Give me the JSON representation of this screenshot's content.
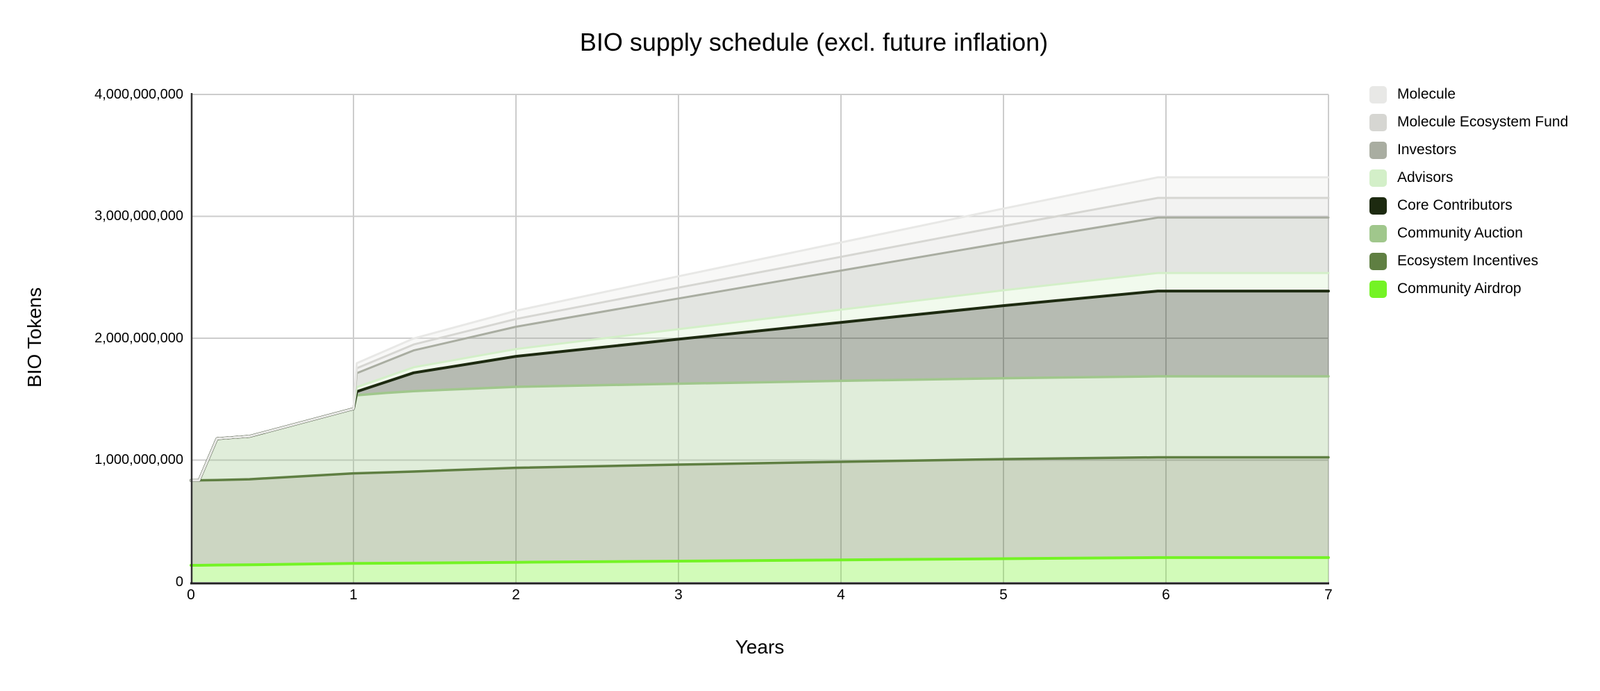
{
  "title": "BIO supply schedule (excl. future inflation)",
  "axes": {
    "x": {
      "title": "Years",
      "ticks": [
        "0",
        "1",
        "2",
        "3",
        "4",
        "5",
        "6",
        "7"
      ]
    },
    "y": {
      "title": "BIO Tokens",
      "ticks": [
        "0",
        "1,000,000,000",
        "2,000,000,000",
        "3,000,000,000",
        "4,000,000,000"
      ]
    }
  },
  "chart_data": {
    "type": "area",
    "stacked": true,
    "title": "BIO supply schedule (excl. future inflation)",
    "xlabel": "Years",
    "ylabel": "BIO Tokens",
    "xlim": [
      0,
      7
    ],
    "ylim": [
      0,
      4000000000
    ],
    "grid": true,
    "legend_position": "right",
    "values_unit": "millions of BIO tokens",
    "x": [
      0,
      0.05,
      0.16,
      0.36,
      1.0,
      1.02,
      1.2,
      1.37,
      2,
      3,
      4,
      5,
      5.95,
      7
    ],
    "series": [
      {
        "name": "Community Airdrop",
        "color": "#74f325",
        "total_at_year7": 200,
        "values": [
          137,
          137,
          139,
          141,
          152,
          152,
          154,
          155,
          161,
          171,
          181,
          191,
          200,
          200
        ]
      },
      {
        "name": "Ecosystem Incentives",
        "color": "#5f7f42",
        "total_at_year7": 823,
        "values": [
          696,
          697,
          697,
          702,
          739,
          740,
          745,
          751,
          776,
          792,
          805,
          817,
          823,
          823
        ]
      },
      {
        "name": "Community Auction",
        "color": "#a0c78c",
        "total_at_year7": 664,
        "values": [
          0,
          0,
          340,
          352,
          530,
          640,
          652,
          660,
          664,
          664,
          664,
          664,
          664,
          664
        ]
      },
      {
        "name": "Core Contributors",
        "color": "#1d2a10",
        "total_at_year7": 700,
        "values": [
          0,
          0,
          0,
          0,
          0,
          30,
          90,
          150,
          250,
          365,
          480,
          595,
          700,
          700
        ]
      },
      {
        "name": "Advisors",
        "color": "#d3efc8",
        "total_at_year7": 148,
        "values": [
          0,
          0,
          0,
          0,
          0,
          37,
          41,
          45,
          60,
          82,
          104,
          126,
          148,
          148
        ]
      },
      {
        "name": "Investors",
        "color": "#a9ada1",
        "total_at_year7": 455,
        "values": [
          0,
          0,
          0,
          0,
          0,
          114,
          127,
          139,
          183,
          252,
          321,
          390,
          455,
          455
        ]
      },
      {
        "name": "Molecule Ecosystem Fund",
        "color": "#d6d6d2",
        "total_at_year7": 161,
        "values": [
          0,
          0,
          0,
          0,
          0,
          40,
          44,
          48,
          64,
          89,
          113,
          137,
          161,
          161
        ]
      },
      {
        "name": "Molecule",
        "color": "#e8e8e6",
        "total_at_year7": 169,
        "values": [
          0,
          0,
          0,
          0,
          0,
          42,
          46,
          50,
          67,
          93,
          118,
          144,
          169,
          169
        ]
      }
    ],
    "fill_opacity": 0.32,
    "total_supply_at_year7": 3320000000
  }
}
